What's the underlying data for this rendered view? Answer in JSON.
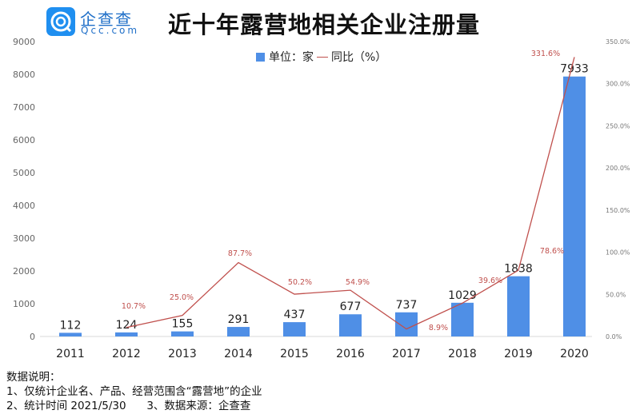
{
  "header": {
    "logo_cn": "企查查",
    "logo_en": "Qcc.com",
    "title": "近十年露营地相关企业注册量"
  },
  "legend": {
    "bar": "单位：家",
    "line": "同比（%）"
  },
  "notes": [
    "数据说明：",
    "1、仅统计企业名、产品、经营范围含“露营地”的企业",
    "2、统计时间 2021/5/30      3、数据来源：企查查"
  ],
  "chart_data": {
    "type": "bar",
    "title": "近十年露营地相关企业注册量",
    "categories": [
      "2011",
      "2012",
      "2013",
      "2014",
      "2015",
      "2016",
      "2017",
      "2018",
      "2019",
      "2020"
    ],
    "series": [
      {
        "name": "单位：家",
        "type": "bar",
        "axis": "left",
        "values": [
          112,
          124,
          155,
          291,
          437,
          677,
          737,
          1029,
          1838,
          7933
        ],
        "labels": [
          "112",
          "124",
          "155",
          "291",
          "437",
          "677",
          "737",
          "1029",
          "1838",
          "7933"
        ]
      },
      {
        "name": "同比（%）",
        "type": "line",
        "axis": "right",
        "values": [
          null,
          10.7,
          25.0,
          87.7,
          50.2,
          54.9,
          8.9,
          39.6,
          78.6,
          331.6
        ],
        "labels": [
          "",
          "10.7%",
          "25.0%",
          "87.7%",
          "50.2%",
          "54.9%",
          "8.9%",
          "39.6%",
          "78.6%",
          "331.6%"
        ]
      }
    ],
    "left_axis": {
      "ylim": [
        0,
        9000
      ],
      "ticks": [
        "0",
        "1000",
        "2000",
        "3000",
        "4000",
        "5000",
        "6000",
        "7000",
        "8000",
        "9000"
      ]
    },
    "right_axis": {
      "ylim": [
        0,
        350
      ],
      "ticks": [
        "0.0%",
        "50.0%",
        "100.0%",
        "150.0%",
        "200.0%",
        "250.0%",
        "300.0%",
        "350.0%"
      ]
    },
    "colors": {
      "bar": "#4f8fe6",
      "line": "#c0504d"
    },
    "legend_position": "top-center",
    "grid": false
  }
}
